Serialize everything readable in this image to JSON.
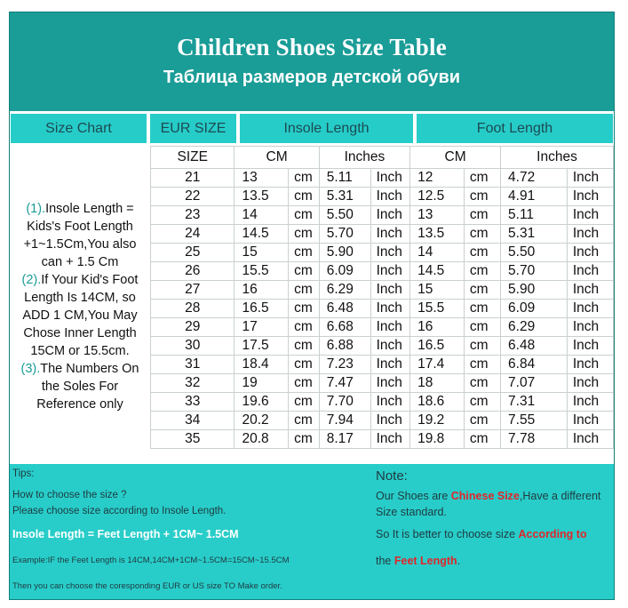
{
  "title": "Children Shoes Size Table",
  "subtitle": "Таблица размеров детской обуви",
  "headers": {
    "size_chart": "Size Chart",
    "eur_size": "EUR SIZE",
    "insole_length": "Insole Length",
    "foot_length": "Foot Length"
  },
  "subheaders": {
    "size": "SIZE",
    "insole_cm": "CM",
    "insole_inches": "Inches",
    "foot_cm": "CM",
    "foot_inches": "Inches"
  },
  "units": {
    "cm": "cm",
    "inch": "Inch"
  },
  "side_notes": [
    {
      "num": "(1).",
      "text": "Insole Length = Kids's Foot Length +1~1.5Cm,You also can + 1.5 Cm"
    },
    {
      "num": "(2).",
      "text": "If Your Kid's Foot Length Is 14CM,  so ADD 1 CM,You May Chose Inner Length 15CM or 15.5cm."
    },
    {
      "num": "(3).",
      "text": "The Numbers On the Soles For Reference only"
    }
  ],
  "rows": [
    {
      "size": "21",
      "insole_cm": "13",
      "insole_in": "5.11",
      "foot_cm": "12",
      "foot_in": "4.72"
    },
    {
      "size": "22",
      "insole_cm": "13.5",
      "insole_in": "5.31",
      "foot_cm": "12.5",
      "foot_in": "4.91"
    },
    {
      "size": "23",
      "insole_cm": "14",
      "insole_in": "5.50",
      "foot_cm": "13",
      "foot_in": "5.11"
    },
    {
      "size": "24",
      "insole_cm": "14.5",
      "insole_in": "5.70",
      "foot_cm": "13.5",
      "foot_in": "5.31"
    },
    {
      "size": "25",
      "insole_cm": "15",
      "insole_in": "5.90",
      "foot_cm": "14",
      "foot_in": "5.50"
    },
    {
      "size": "26",
      "insole_cm": "15.5",
      "insole_in": "6.09",
      "foot_cm": "14.5",
      "foot_in": "5.70"
    },
    {
      "size": "27",
      "insole_cm": "16",
      "insole_in": "6.29",
      "foot_cm": "15",
      "foot_in": "5.90"
    },
    {
      "size": "28",
      "insole_cm": "16.5",
      "insole_in": "6.48",
      "foot_cm": "15.5",
      "foot_in": "6.09"
    },
    {
      "size": "29",
      "insole_cm": "17",
      "insole_in": "6.68",
      "foot_cm": "16",
      "foot_in": "6.29"
    },
    {
      "size": "30",
      "insole_cm": "17.5",
      "insole_in": "6.88",
      "foot_cm": "16.5",
      "foot_in": "6.48"
    },
    {
      "size": "31",
      "insole_cm": "18.4",
      "insole_in": "7.23",
      "foot_cm": "17.4",
      "foot_in": "6.84"
    },
    {
      "size": "32",
      "insole_cm": "19",
      "insole_in": "7.47",
      "foot_cm": "18",
      "foot_in": "7.07"
    },
    {
      "size": "33",
      "insole_cm": "19.6",
      "insole_in": "7.70",
      "foot_cm": "18.6",
      "foot_in": "7.31"
    },
    {
      "size": "34",
      "insole_cm": "20.2",
      "insole_in": "7.94",
      "foot_cm": "19.2",
      "foot_in": "7.55"
    },
    {
      "size": "35",
      "insole_cm": "20.8",
      "insole_in": "8.17",
      "foot_cm": "19.8",
      "foot_in": "7.78"
    }
  ],
  "footer": {
    "tips_label": "Tips:",
    "how_to": "How to choose the size ?",
    "please_choose": "Please choose size according to Insole Length.",
    "formula": "Insole Length = Feet Length + 1CM~ 1.5CM",
    "example": "Example:IF the Feet Length is 14CM,14CM+1CM~1.5CM=15CM~15.5CM",
    "then": "Then you can choose the coresponding EUR or US size TO Make order.",
    "note_label": "Note:",
    "note1_pre": "Our Shoes are ",
    "note1_red": "Chinese Size",
    "note1_post": ",Have a different",
    "note2": "Size standard.",
    "note3_pre": "So It is better to choose size ",
    "note3_red": "According to",
    "note4_pre": "the ",
    "note4_red": "Feet Length",
    "note4_post": "."
  },
  "colors": {
    "header_bg": "#1a9c97",
    "colhead_bg": "#26ccc8",
    "footer_bg": "#28cdc9",
    "unit_red": "#e0262a"
  }
}
